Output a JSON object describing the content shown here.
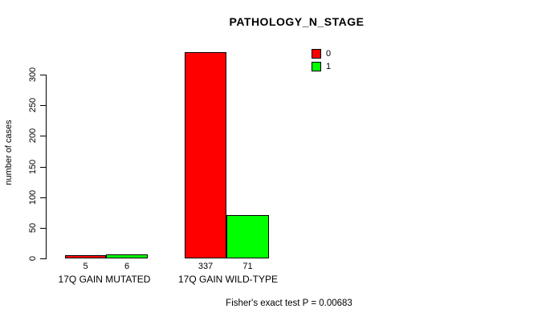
{
  "chart_data": {
    "type": "bar",
    "title": "PATHOLOGY_N_STAGE",
    "ylabel": "number of cases",
    "xlabel": "",
    "categories": [
      "17Q GAIN MUTATED",
      "17Q GAIN WILD-TYPE"
    ],
    "series": [
      {
        "name": "0",
        "color": "#ff0000",
        "values": [
          5,
          337
        ]
      },
      {
        "name": "1",
        "color": "#00ff00",
        "values": [
          6,
          71
        ]
      }
    ],
    "yticks": [
      0,
      50,
      100,
      150,
      200,
      250,
      300
    ],
    "ylim": [
      0,
      340
    ],
    "grid": false,
    "legend_position": "top-right",
    "bar_value_labels_shown": true,
    "axis_color": "#000000",
    "background_color": "#ffffff",
    "caption": "Fisher's exact test P = 0.00683"
  }
}
